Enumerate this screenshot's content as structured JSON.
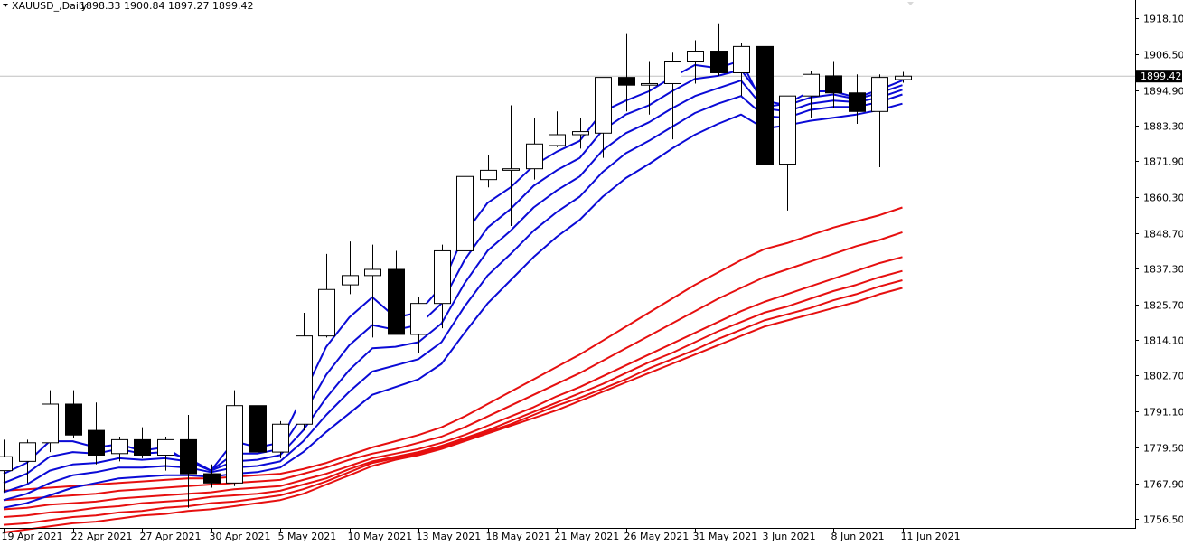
{
  "header": {
    "symbol": "XAUUSD_,Daily",
    "ohlc": "1898.33 1900.84 1897.27 1899.42"
  },
  "colors": {
    "background": "#ffffff",
    "candle_outline": "#000000",
    "bull_fill": "#ffffff",
    "bear_fill": "#000000",
    "fast_ma": "#0a0ad6",
    "slow_ma": "#e60f0f",
    "price_line": "#c0c0c0",
    "axis_text": "#000000"
  },
  "chart_data": {
    "type": "candlestick",
    "price_ticks": [
      "1918.10",
      "1906.50",
      "1894.90",
      "1883.30",
      "1871.90",
      "1860.30",
      "1848.70",
      "1837.30",
      "1825.70",
      "1814.10",
      "1802.70",
      "1791.10",
      "1779.50",
      "1767.90",
      "1756.50"
    ],
    "date_ticks": [
      "19 Apr 2021",
      "22 Apr 2021",
      "27 Apr 2021",
      "30 Apr 2021",
      "5 May 2021",
      "10 May 2021",
      "13 May 2021",
      "18 May 2021",
      "21 May 2021",
      "26 May 2021",
      "31 May 2021",
      "3 Jun 2021",
      "8 Jun 2021",
      "11 Jun 2021"
    ],
    "current_price": "1899.42",
    "ylim": [
      1753.5,
      1924.0
    ],
    "candles": [
      {
        "o": 1772.0,
        "h": 1782.0,
        "l": 1765.0,
        "c": 1776.5
      },
      {
        "o": 1775.0,
        "h": 1782.0,
        "l": 1768.0,
        "c": 1781.0
      },
      {
        "o": 1781.0,
        "h": 1798.0,
        "l": 1778.0,
        "c": 1793.5
      },
      {
        "o": 1793.5,
        "h": 1798.0,
        "l": 1782.5,
        "c": 1783.5
      },
      {
        "o": 1785.0,
        "h": 1794.0,
        "l": 1774.0,
        "c": 1777.0
      },
      {
        "o": 1777.5,
        "h": 1783.0,
        "l": 1775.0,
        "c": 1782.0
      },
      {
        "o": 1782.0,
        "h": 1786.0,
        "l": 1776.0,
        "c": 1777.0
      },
      {
        "o": 1777.0,
        "h": 1783.0,
        "l": 1772.0,
        "c": 1782.0
      },
      {
        "o": 1782.0,
        "h": 1790.0,
        "l": 1760.0,
        "c": 1771.0
      },
      {
        "o": 1771.0,
        "h": 1774.0,
        "l": 1766.5,
        "c": 1768.0
      },
      {
        "o": 1768.0,
        "h": 1798.0,
        "l": 1767.0,
        "c": 1793.0
      },
      {
        "o": 1793.0,
        "h": 1799.0,
        "l": 1774.0,
        "c": 1778.0
      },
      {
        "o": 1778.0,
        "h": 1788.0,
        "l": 1776.0,
        "c": 1787.0
      },
      {
        "o": 1787.0,
        "h": 1823.0,
        "l": 1785.0,
        "c": 1815.5
      },
      {
        "o": 1815.5,
        "h": 1842.0,
        "l": 1815.0,
        "c": 1830.5
      },
      {
        "o": 1832.0,
        "h": 1846.0,
        "l": 1829.0,
        "c": 1835.0
      },
      {
        "o": 1835.0,
        "h": 1845.0,
        "l": 1815.0,
        "c": 1837.0
      },
      {
        "o": 1837.0,
        "h": 1843.0,
        "l": 1816.0,
        "c": 1816.0
      },
      {
        "o": 1816.0,
        "h": 1828.0,
        "l": 1810.0,
        "c": 1826.0
      },
      {
        "o": 1826.0,
        "h": 1845.0,
        "l": 1818.0,
        "c": 1843.0
      },
      {
        "o": 1843.0,
        "h": 1869.0,
        "l": 1838.0,
        "c": 1867.0
      },
      {
        "o": 1866.0,
        "h": 1874.0,
        "l": 1863.5,
        "c": 1869.0
      },
      {
        "o": 1869.0,
        "h": 1890.0,
        "l": 1851.0,
        "c": 1869.5
      },
      {
        "o": 1869.5,
        "h": 1886.0,
        "l": 1866.0,
        "c": 1877.5
      },
      {
        "o": 1877.0,
        "h": 1888.0,
        "l": 1876.5,
        "c": 1880.5
      },
      {
        "o": 1880.5,
        "h": 1886.0,
        "l": 1876.0,
        "c": 1881.5
      },
      {
        "o": 1881.0,
        "h": 1899.0,
        "l": 1873.0,
        "c": 1899.0
      },
      {
        "o": 1899.0,
        "h": 1913.0,
        "l": 1888.0,
        "c": 1896.5
      },
      {
        "o": 1896.5,
        "h": 1904.0,
        "l": 1887.0,
        "c": 1897.0
      },
      {
        "o": 1897.0,
        "h": 1907.0,
        "l": 1879.0,
        "c": 1904.0
      },
      {
        "o": 1904.0,
        "h": 1911.0,
        "l": 1897.0,
        "c": 1907.5
      },
      {
        "o": 1907.5,
        "h": 1916.5,
        "l": 1899.5,
        "c": 1900.5
      },
      {
        "o": 1900.5,
        "h": 1910.0,
        "l": 1893.0,
        "c": 1909.0
      },
      {
        "o": 1909.0,
        "h": 1910.0,
        "l": 1866.0,
        "c": 1871.0
      },
      {
        "o": 1871.0,
        "h": 1893.0,
        "l": 1856.0,
        "c": 1893.0
      },
      {
        "o": 1893.0,
        "h": 1901.0,
        "l": 1886.0,
        "c": 1900.0
      },
      {
        "o": 1899.5,
        "h": 1904.0,
        "l": 1889.0,
        "c": 1894.0
      },
      {
        "o": 1894.0,
        "h": 1900.0,
        "l": 1884.0,
        "c": 1888.0
      },
      {
        "o": 1888.0,
        "h": 1900.0,
        "l": 1870.0,
        "c": 1899.0
      },
      {
        "o": 1898.3,
        "h": 1900.8,
        "l": 1897.3,
        "c": 1899.4
      }
    ],
    "fast_mas": [
      [
        1771.0,
        1774.5,
        1781.5,
        1781.5,
        1779.5,
        1780.5,
        1778.5,
        1779.5,
        1775.0,
        1772.0,
        1781.5,
        1779.5,
        1781.0,
        1796.5,
        1812.0,
        1821.5,
        1828.0,
        1821.5,
        1823.0,
        1831.5,
        1848.5,
        1858.5,
        1863.5,
        1870.5,
        1875.0,
        1878.5,
        1888.0,
        1891.5,
        1894.5,
        1899.0,
        1903.0,
        1902.0,
        1904.5,
        1889.5,
        1890.5,
        1894.5,
        1894.5,
        1892.5,
        1895.0,
        1898.0
      ],
      [
        1768.0,
        1771.0,
        1776.5,
        1778.0,
        1777.5,
        1779.0,
        1777.5,
        1778.0,
        1776.0,
        1772.0,
        1777.5,
        1777.5,
        1779.0,
        1790.0,
        1803.0,
        1812.5,
        1819.0,
        1817.5,
        1819.0,
        1826.0,
        1840.0,
        1850.5,
        1856.5,
        1864.0,
        1869.0,
        1873.0,
        1882.0,
        1887.0,
        1890.0,
        1894.5,
        1898.5,
        1899.5,
        1901.5,
        1891.5,
        1890.0,
        1892.5,
        1893.5,
        1892.0,
        1894.0,
        1896.5
      ],
      [
        1765.0,
        1767.5,
        1772.0,
        1774.0,
        1774.5,
        1776.0,
        1775.5,
        1776.0,
        1775.0,
        1772.0,
        1775.0,
        1775.5,
        1777.0,
        1785.0,
        1795.5,
        1804.5,
        1811.5,
        1812.0,
        1813.5,
        1819.5,
        1832.5,
        1843.0,
        1849.5,
        1857.0,
        1862.5,
        1867.0,
        1875.5,
        1881.0,
        1884.5,
        1889.0,
        1893.0,
        1895.5,
        1898.0,
        1889.0,
        1888.0,
        1890.5,
        1891.5,
        1891.0,
        1892.5,
        1895.0
      ],
      [
        1762.5,
        1764.5,
        1768.0,
        1770.5,
        1771.5,
        1773.0,
        1773.0,
        1773.5,
        1773.0,
        1771.5,
        1773.0,
        1773.5,
        1775.0,
        1781.5,
        1790.0,
        1797.5,
        1804.0,
        1806.0,
        1808.0,
        1813.5,
        1825.0,
        1835.0,
        1842.0,
        1849.5,
        1855.5,
        1860.5,
        1868.5,
        1874.5,
        1878.5,
        1883.0,
        1887.5,
        1890.5,
        1893.0,
        1886.5,
        1886.0,
        1888.5,
        1889.5,
        1889.5,
        1891.0,
        1893.5
      ],
      [
        1760.0,
        1761.5,
        1764.0,
        1766.5,
        1768.0,
        1769.5,
        1770.0,
        1770.5,
        1770.5,
        1770.0,
        1771.0,
        1771.5,
        1773.0,
        1778.0,
        1784.5,
        1790.5,
        1796.5,
        1799.0,
        1801.5,
        1806.5,
        1816.5,
        1826.0,
        1833.5,
        1841.0,
        1847.5,
        1853.0,
        1860.5,
        1866.5,
        1871.0,
        1876.0,
        1880.5,
        1884.0,
        1887.0,
        1882.5,
        1883.5,
        1885.0,
        1886.0,
        1887.0,
        1888.5,
        1890.5
      ]
    ],
    "slow_mas": [
      [
        1765.5,
        1766.0,
        1766.5,
        1767.0,
        1767.5,
        1768.0,
        1768.5,
        1769.0,
        1769.5,
        1769.5,
        1770.0,
        1770.5,
        1771.0,
        1772.5,
        1774.5,
        1777.0,
        1779.5,
        1781.5,
        1783.5,
        1786.0,
        1789.5,
        1793.5,
        1797.5,
        1801.5,
        1805.5,
        1809.5,
        1814.0,
        1818.5,
        1823.0,
        1827.5,
        1832.0,
        1836.0,
        1840.0,
        1843.5,
        1845.5,
        1848.0,
        1850.5,
        1852.5,
        1854.5,
        1857.0
      ],
      [
        1762.5,
        1763.0,
        1763.5,
        1764.0,
        1764.5,
        1765.5,
        1766.0,
        1766.5,
        1767.0,
        1767.5,
        1768.0,
        1768.5,
        1769.0,
        1771.0,
        1773.0,
        1775.5,
        1777.5,
        1779.0,
        1781.0,
        1783.0,
        1786.0,
        1789.5,
        1793.0,
        1796.5,
        1800.0,
        1803.5,
        1807.5,
        1811.5,
        1815.5,
        1819.5,
        1823.5,
        1827.5,
        1831.0,
        1834.5,
        1837.0,
        1839.5,
        1842.0,
        1844.5,
        1846.5,
        1849.0
      ],
      [
        1759.5,
        1760.0,
        1761.0,
        1761.5,
        1762.0,
        1763.0,
        1763.5,
        1764.0,
        1764.5,
        1765.0,
        1766.0,
        1766.5,
        1767.0,
        1769.0,
        1771.0,
        1773.5,
        1776.0,
        1777.5,
        1779.0,
        1781.0,
        1783.5,
        1786.5,
        1789.5,
        1792.5,
        1796.0,
        1799.0,
        1802.5,
        1806.0,
        1809.5,
        1813.0,
        1816.5,
        1820.0,
        1823.5,
        1826.5,
        1829.0,
        1831.5,
        1834.0,
        1836.5,
        1839.0,
        1841.0
      ],
      [
        1757.0,
        1757.5,
        1758.5,
        1759.0,
        1760.0,
        1760.5,
        1761.5,
        1762.0,
        1762.5,
        1763.5,
        1764.0,
        1764.5,
        1765.5,
        1767.5,
        1769.5,
        1772.5,
        1775.0,
        1776.5,
        1778.0,
        1780.0,
        1782.5,
        1785.0,
        1788.0,
        1791.0,
        1794.0,
        1797.0,
        1800.0,
        1803.5,
        1807.0,
        1810.0,
        1813.5,
        1817.0,
        1820.0,
        1823.0,
        1825.0,
        1827.5,
        1830.0,
        1832.0,
        1834.5,
        1836.5
      ],
      [
        1754.5,
        1755.0,
        1756.0,
        1757.0,
        1757.5,
        1758.5,
        1759.0,
        1760.0,
        1760.5,
        1761.5,
        1762.0,
        1763.0,
        1764.0,
        1766.0,
        1768.5,
        1771.5,
        1774.5,
        1776.0,
        1777.5,
        1779.5,
        1782.0,
        1784.5,
        1787.0,
        1790.0,
        1793.0,
        1795.5,
        1798.5,
        1801.5,
        1805.0,
        1808.0,
        1811.0,
        1814.5,
        1817.5,
        1820.5,
        1822.5,
        1824.5,
        1827.0,
        1829.0,
        1831.5,
        1833.5
      ],
      [
        1752.0,
        1753.0,
        1754.0,
        1755.0,
        1755.5,
        1756.5,
        1757.5,
        1758.0,
        1759.0,
        1759.5,
        1760.5,
        1761.5,
        1762.5,
        1764.5,
        1767.5,
        1770.5,
        1773.5,
        1775.5,
        1777.0,
        1779.0,
        1781.5,
        1784.0,
        1786.5,
        1789.0,
        1791.5,
        1794.5,
        1797.5,
        1800.5,
        1803.5,
        1806.5,
        1809.5,
        1812.5,
        1815.5,
        1818.5,
        1820.5,
        1822.5,
        1824.5,
        1826.5,
        1829.0,
        1831.0
      ]
    ]
  }
}
